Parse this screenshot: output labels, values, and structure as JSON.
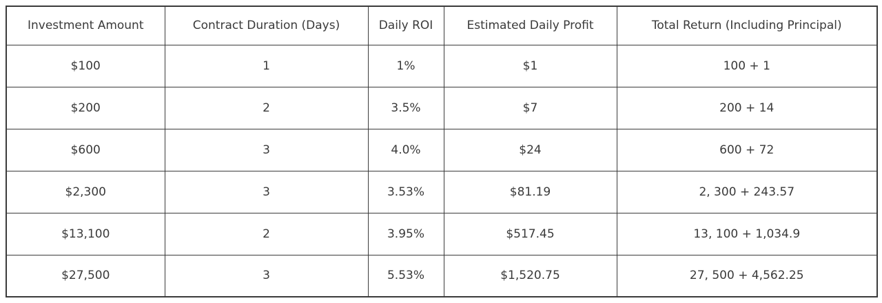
{
  "colors": {
    "background": "#ffffff",
    "border": "#3a3a3a",
    "text": "#3a3a3a"
  },
  "chart_data": {
    "type": "table",
    "title": "",
    "columns": [
      "Investment Amount",
      "Contract Duration (Days)",
      "Daily ROI",
      "Estimated Daily Profit",
      "Total Return (Including Principal)"
    ],
    "rows": [
      [
        "$100",
        "1",
        "1%",
        "$1",
        "100 + 1"
      ],
      [
        "$200",
        "2",
        "3.5%",
        "$7",
        "200 + 14"
      ],
      [
        "$600",
        "3",
        "4.0%",
        "$24",
        "600 + 72"
      ],
      [
        "$2,300",
        "3",
        "3.53%",
        "$81.19",
        "2, 300 + 243.57"
      ],
      [
        "$13,100",
        "2",
        "3.95%",
        "$517.45",
        "13, 100 + 1,034.9"
      ],
      [
        "$27,500",
        "3",
        "5.53%",
        "$1,520.75",
        "27, 500 + 4,562.25"
      ]
    ]
  }
}
